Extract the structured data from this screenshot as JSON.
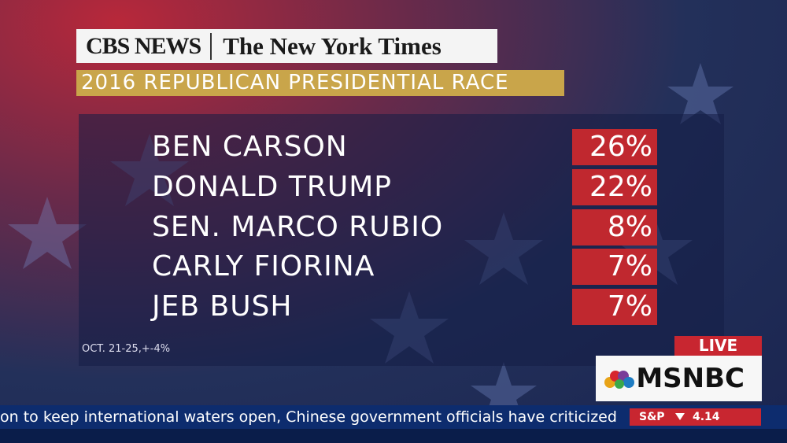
{
  "header": {
    "logos": [
      "CBS NEWS",
      "The New York Times"
    ],
    "title": "2016 REPUBLICAN PRESIDENTIAL RACE"
  },
  "table": {
    "rows": [
      [
        "BEN CARSON",
        "26%"
      ],
      [
        "DONALD TRUMP",
        "22%"
      ],
      [
        "SEN. MARCO RUBIO",
        "8%"
      ],
      [
        "CARLY FIORINA",
        "7%"
      ],
      [
        "JEB BUSH",
        "7%"
      ]
    ]
  },
  "footnote": "OCT. 21-25,+-4%",
  "bug": {
    "live": "LIVE",
    "network": "MSNBC"
  },
  "ticker": {
    "text": "on to keep international waters open, Chinese government officials have criticized",
    "market": "S&P",
    "value": "4.14"
  }
}
